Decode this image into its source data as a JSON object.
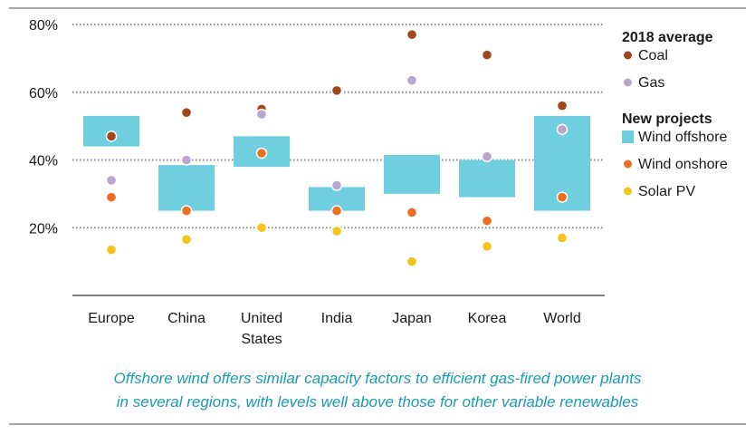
{
  "caption": {
    "line1": "Offshore wind offers similar capacity factors to efficient gas-fired power plants",
    "line2": "in several regions, with levels well above those for other variable renewables"
  },
  "colors": {
    "coal": "#a0461a",
    "gas": "#b9a6cf",
    "wind_offshore": "#6fcfdf",
    "wind_onshore": "#ee6e20",
    "solar_pv": "#f5c41b",
    "grid": "#8c8c8c",
    "caption": "#1a9bb0"
  },
  "chart_data": {
    "type": "scatter",
    "title": "",
    "xlabel": "",
    "ylabel": "",
    "ylim": [
      0,
      80
    ],
    "yticks": [
      {
        "value": 20,
        "label": "20%"
      },
      {
        "value": 40,
        "label": "40%"
      },
      {
        "value": 60,
        "label": "60%"
      },
      {
        "value": 80,
        "label": "80%"
      }
    ],
    "grid": "horizontal dotted",
    "legend_position": "right",
    "categories": [
      {
        "name": "Europe",
        "label_lines": [
          "Europe"
        ]
      },
      {
        "name": "China",
        "label_lines": [
          "China"
        ]
      },
      {
        "name": "United States",
        "label_lines": [
          "United",
          "States"
        ]
      },
      {
        "name": "India",
        "label_lines": [
          "India"
        ]
      },
      {
        "name": "Japan",
        "label_lines": [
          "Japan"
        ]
      },
      {
        "name": "Korea",
        "label_lines": [
          "Korea"
        ]
      },
      {
        "name": "World",
        "label_lines": [
          "World"
        ]
      }
    ],
    "legend": {
      "group1_title": "2018 average",
      "group2_title": "New projects",
      "items": [
        {
          "key": "coal",
          "label": "Coal",
          "marker": "dot"
        },
        {
          "key": "gas",
          "label": "Gas",
          "marker": "dot"
        },
        {
          "key": "wind_offshore",
          "label": "Wind offshore",
          "marker": "box"
        },
        {
          "key": "wind_onshore",
          "label": "Wind onshore",
          "marker": "dot"
        },
        {
          "key": "solar_pv",
          "label": "Solar PV",
          "marker": "dot"
        }
      ]
    },
    "series": [
      {
        "key": "wind_offshore",
        "name": "Wind offshore",
        "type": "range",
        "ranges": [
          [
            44,
            53
          ],
          [
            25,
            38.5
          ],
          [
            38,
            47
          ],
          [
            25,
            32
          ],
          [
            30,
            41.5
          ],
          [
            29,
            40
          ],
          [
            25,
            53
          ]
        ]
      },
      {
        "key": "coal",
        "name": "Coal",
        "values": [
          47,
          54,
          55,
          60.5,
          77,
          71,
          56
        ]
      },
      {
        "key": "gas",
        "name": "Gas",
        "values": [
          34,
          40,
          53.5,
          32.5,
          63.5,
          41,
          49
        ]
      },
      {
        "key": "wind_onshore",
        "name": "Wind onshore",
        "values": [
          29,
          25,
          42,
          25,
          24.5,
          22,
          29
        ]
      },
      {
        "key": "solar_pv",
        "name": "Solar PV",
        "values": [
          13.5,
          16.5,
          20,
          19,
          10,
          14.5,
          17
        ]
      }
    ]
  }
}
